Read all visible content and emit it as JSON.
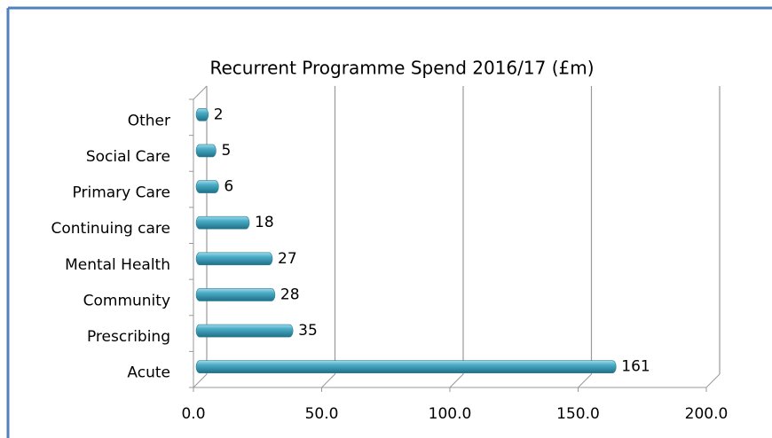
{
  "chart_data": {
    "type": "bar",
    "orientation": "horizontal",
    "title": "Recurrent Programme Spend 2016/17 (£m)",
    "categories": [
      "Other",
      "Social Care",
      "Primary Care",
      "Continuing care",
      "Mental Health",
      "Community",
      "Prescribing",
      "Acute"
    ],
    "values": [
      2,
      5,
      6,
      18,
      27,
      28,
      35,
      161
    ],
    "color": "#4bacc6",
    "xlim": [
      0,
      200
    ],
    "xticks": [
      {
        "value": 0,
        "label": "0.0"
      },
      {
        "value": 50,
        "label": "50.0"
      },
      {
        "value": 100,
        "label": "100.0"
      },
      {
        "value": 150,
        "label": "150.0"
      },
      {
        "value": 200,
        "label": "200.0"
      }
    ],
    "grid": true
  }
}
